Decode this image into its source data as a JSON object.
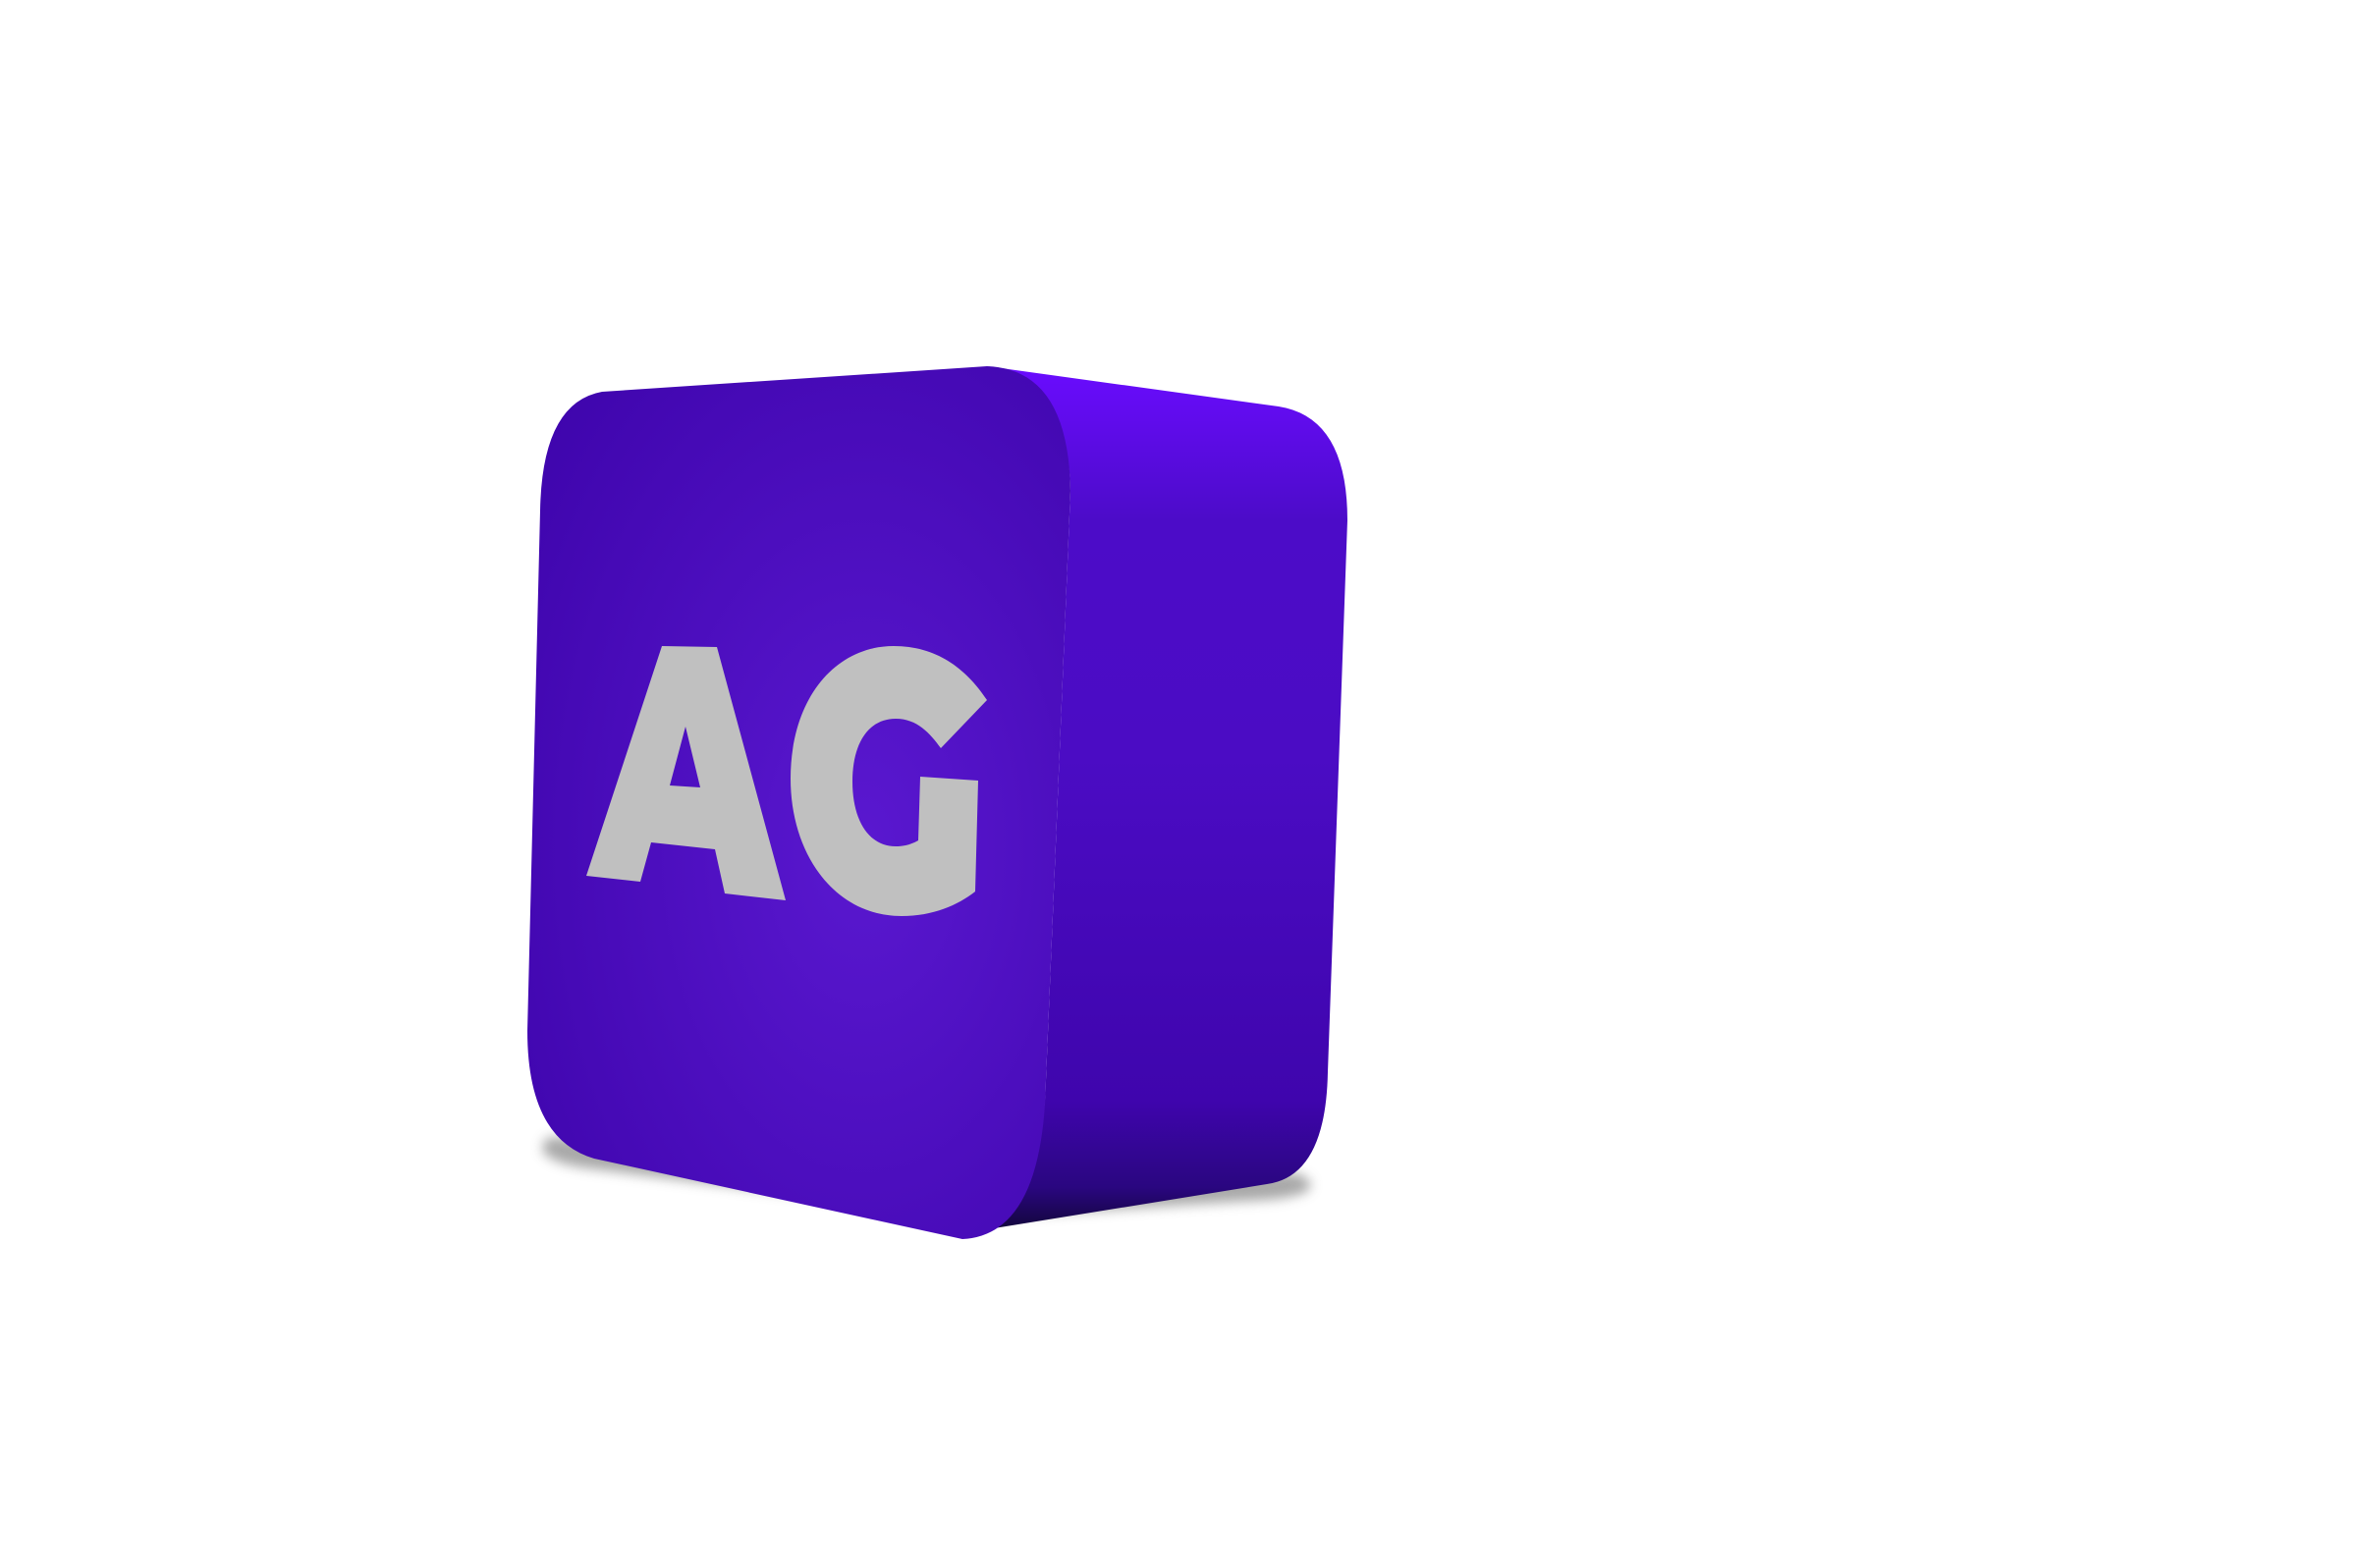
{
  "logo": {
    "text": "AG",
    "face_color_center": "#5a18d0",
    "face_color_edge": "#3f05ad",
    "side_color_top": "#6a0cff",
    "side_color_mid": "#4b0cc4",
    "side_color_bottom": "#12063a",
    "letter_color": "#c0c0c0",
    "shadow_color": "#9a9a9a",
    "background": "#ffffff"
  }
}
